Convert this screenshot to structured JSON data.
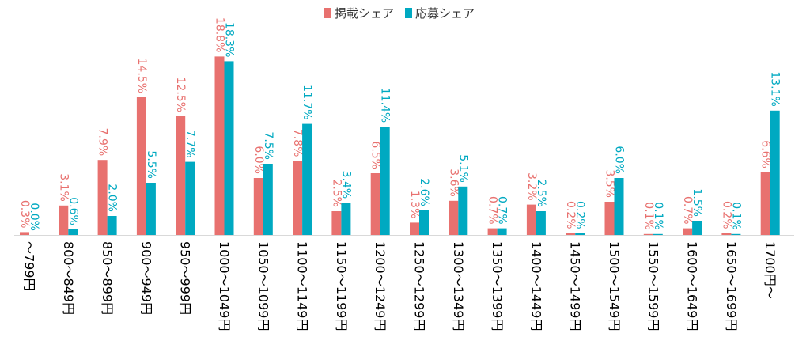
{
  "chart_data": {
    "type": "bar",
    "title": "",
    "xlabel": "",
    "ylabel": "",
    "legend_position": "top-center",
    "grid": false,
    "ylim": [
      0,
      19
    ],
    "categories": [
      "～799円",
      "800～849円",
      "850～899円",
      "900～949円",
      "950～999円",
      "1000～1049円",
      "1050～1099円",
      "1100～1149円",
      "1150～1199円",
      "1200～1249円",
      "1250～1299円",
      "1300～1349円",
      "1350～1399円",
      "1400～1449円",
      "1450～1499円",
      "1500～1549円",
      "1550～1599円",
      "1600～1649円",
      "1650～1699円",
      "1700円～"
    ],
    "series": [
      {
        "name": "掲載シェア",
        "color": "#E8716F",
        "values": [
          0.3,
          3.1,
          7.9,
          14.5,
          12.5,
          18.8,
          6.0,
          7.8,
          2.5,
          6.5,
          1.3,
          3.6,
          0.7,
          3.2,
          0.2,
          3.5,
          0.1,
          0.7,
          0.2,
          6.6
        ],
        "labels": [
          "0.3%",
          "3.1%",
          "7.9%",
          "14.5%",
          "12.5%",
          "18.8%",
          "6.0%",
          "7.8%",
          "2.5%",
          "6.5%",
          "1.3%",
          "3.6%",
          "0.7%",
          "3.2%",
          "0.2%",
          "3.5%",
          "0.1%",
          "0.7%",
          "0.2%",
          "6.6%"
        ]
      },
      {
        "name": "応募シェア",
        "color": "#00A9C1",
        "values": [
          0.0,
          0.6,
          2.0,
          5.5,
          7.7,
          18.3,
          7.5,
          11.7,
          3.4,
          11.4,
          2.6,
          5.1,
          0.7,
          2.5,
          0.2,
          6.0,
          0.1,
          1.5,
          0.1,
          13.1
        ],
        "labels": [
          "0.0%",
          "0.6%",
          "2.0%",
          "5.5%",
          "7.7%",
          "18.3%",
          "7.5%",
          "11.7%",
          "3.4%",
          "11.4%",
          "2.6%",
          "5.1%",
          "0.7%",
          "2.5%",
          "0.2%",
          "6.0%",
          "0.1%",
          "1.5%",
          "0.1%",
          "13.1%"
        ]
      }
    ]
  }
}
